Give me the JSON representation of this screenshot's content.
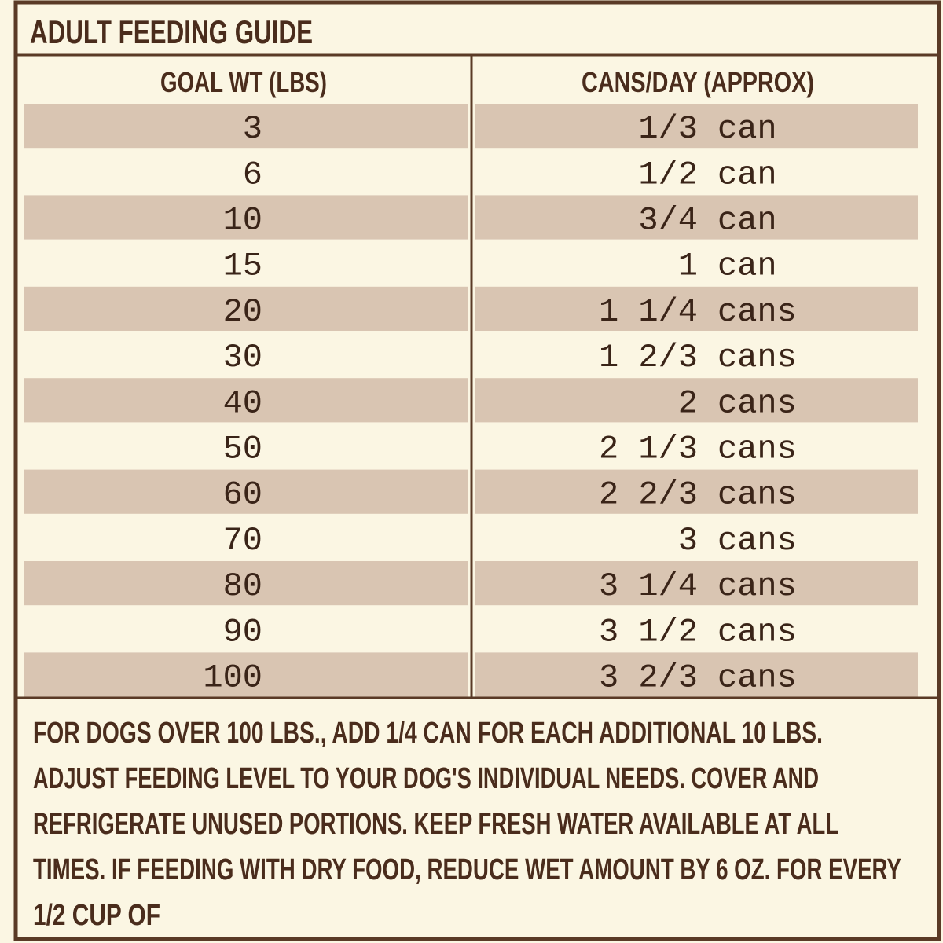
{
  "title": "ADULT FEEDING GUIDE",
  "table": {
    "headers": [
      "GOAL WT (LBS)",
      "CANS/DAY (APPROX)"
    ],
    "rows": [
      {
        "weight": "3",
        "amount": "1/3",
        "unit": "can"
      },
      {
        "weight": "6",
        "amount": "1/2",
        "unit": "can"
      },
      {
        "weight": "10",
        "amount": "3/4",
        "unit": "can"
      },
      {
        "weight": "15",
        "amount": "1",
        "unit": "can"
      },
      {
        "weight": "20",
        "amount": "1 1/4",
        "unit": "cans"
      },
      {
        "weight": "30",
        "amount": "1 2/3",
        "unit": "cans"
      },
      {
        "weight": "40",
        "amount": "2",
        "unit": "cans"
      },
      {
        "weight": "50",
        "amount": "2 1/3",
        "unit": "cans"
      },
      {
        "weight": "60",
        "amount": "2 2/3",
        "unit": "cans"
      },
      {
        "weight": "70",
        "amount": "3",
        "unit": "cans"
      },
      {
        "weight": "80",
        "amount": "3 1/4",
        "unit": "cans"
      },
      {
        "weight": "90",
        "amount": "3 1/2",
        "unit": "cans"
      },
      {
        "weight": "100",
        "amount": "3 2/3",
        "unit": "cans"
      }
    ]
  },
  "footer": {
    "lines": [
      "FOR DOGS OVER 100 LBS., ADD 1/4 CAN FOR EACH ADDITIONAL 10 LBS.",
      "ADJUST FEEDING LEVEL TO YOUR DOG'S INDIVIDUAL NEEDS. COVER AND",
      "REFRIGERATE UNUSED PORTIONS. KEEP FRESH WATER AVAILABLE AT ALL",
      "TIMES. IF FEEDING WITH DRY FOOD, REDUCE WET AMOUNT BY 6 OZ. FOR EVERY",
      "1/2 CUP OF"
    ]
  }
}
